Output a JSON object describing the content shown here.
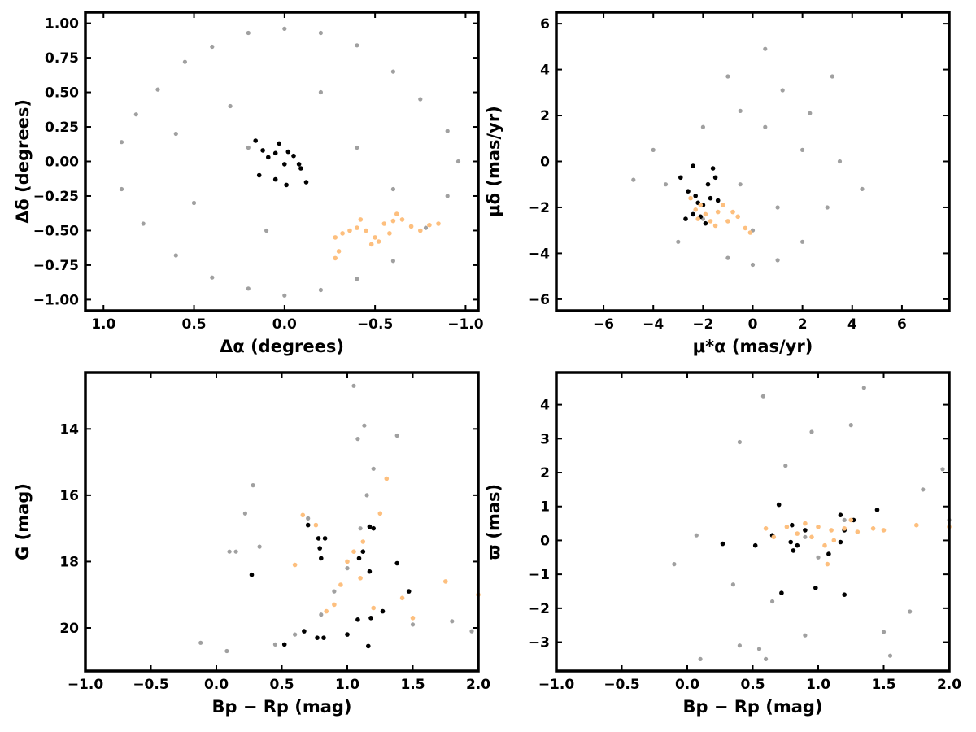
{
  "colors": {
    "field": "#a0a0a0",
    "group_black": "#000000",
    "group_orange": "#fdbf7e"
  },
  "chart_data": [
    {
      "type": "scatter",
      "panel": "top-left",
      "xlabel": "Δα (degrees)",
      "ylabel": "Δδ (degrees)",
      "xlim": [
        1.1,
        -1.07
      ],
      "ylim": [
        -1.08,
        1.08
      ],
      "x_inverted": true,
      "xticks": [
        "1.0",
        "0.5",
        "0.0",
        "−0.5",
        "−1.0"
      ],
      "yticks": [
        "−1.00",
        "−0.75",
        "−0.50",
        "−0.25",
        "0.00",
        "0.25",
        "0.50",
        "0.75",
        "1.00"
      ],
      "series": [
        {
          "role": "field",
          "color": "#a0a0a0",
          "points": [
            [
              0.9,
              0.14
            ],
            [
              0.82,
              0.34
            ],
            [
              0.7,
              0.52
            ],
            [
              0.55,
              0.72
            ],
            [
              0.4,
              0.83
            ],
            [
              0.2,
              0.93
            ],
            [
              0.0,
              0.96
            ],
            [
              -0.2,
              0.93
            ],
            [
              -0.4,
              0.84
            ],
            [
              -0.6,
              0.65
            ],
            [
              -0.75,
              0.45
            ],
            [
              -0.9,
              0.22
            ],
            [
              -0.96,
              0.0
            ],
            [
              -0.9,
              -0.25
            ],
            [
              -0.78,
              -0.48
            ],
            [
              -0.6,
              -0.72
            ],
            [
              -0.4,
              -0.85
            ],
            [
              -0.2,
              -0.93
            ],
            [
              0.0,
              -0.97
            ],
            [
              0.2,
              -0.92
            ],
            [
              0.4,
              -0.84
            ],
            [
              0.6,
              -0.68
            ],
            [
              0.78,
              -0.45
            ],
            [
              0.9,
              -0.2
            ],
            [
              0.3,
              0.4
            ],
            [
              -0.2,
              0.5
            ],
            [
              0.5,
              -0.3
            ],
            [
              -0.4,
              0.1
            ],
            [
              0.1,
              -0.5
            ],
            [
              -0.6,
              -0.2
            ],
            [
              0.6,
              0.2
            ],
            [
              0.2,
              0.1
            ]
          ]
        },
        {
          "role": "group",
          "color": "#000000",
          "points": [
            [
              0.16,
              0.15
            ],
            [
              0.12,
              0.08
            ],
            [
              0.05,
              0.06
            ],
            [
              0.03,
              0.13
            ],
            [
              -0.02,
              0.07
            ],
            [
              0.0,
              -0.02
            ],
            [
              -0.05,
              0.04
            ],
            [
              -0.09,
              -0.05
            ],
            [
              -0.12,
              -0.15
            ],
            [
              0.05,
              -0.13
            ],
            [
              0.14,
              -0.1
            ],
            [
              -0.01,
              -0.17
            ],
            [
              -0.08,
              -0.02
            ],
            [
              0.09,
              0.03
            ]
          ]
        },
        {
          "role": "group",
          "color": "#fdbf7e",
          "points": [
            [
              -0.28,
              -0.55
            ],
            [
              -0.32,
              -0.52
            ],
            [
              -0.36,
              -0.5
            ],
            [
              -0.4,
              -0.48
            ],
            [
              -0.45,
              -0.5
            ],
            [
              -0.5,
              -0.55
            ],
            [
              -0.55,
              -0.45
            ],
            [
              -0.6,
              -0.43
            ],
            [
              -0.65,
              -0.42
            ],
            [
              -0.7,
              -0.47
            ],
            [
              -0.75,
              -0.5
            ],
            [
              -0.8,
              -0.46
            ],
            [
              -0.85,
              -0.45
            ],
            [
              -0.48,
              -0.6
            ],
            [
              -0.52,
              -0.58
            ],
            [
              -0.3,
              -0.65
            ],
            [
              -0.42,
              -0.42
            ],
            [
              -0.58,
              -0.52
            ],
            [
              -0.28,
              -0.7
            ],
            [
              -0.62,
              -0.38
            ]
          ]
        }
      ]
    },
    {
      "type": "scatter",
      "panel": "top-right",
      "xlabel": "μ*α (mas/yr)",
      "ylabel": "μδ (mas/yr)",
      "xlim": [
        -7.9,
        7.9
      ],
      "ylim": [
        -6.5,
        6.5
      ],
      "xticks": [
        "−6",
        "−4",
        "−2",
        "0",
        "2",
        "4",
        "6"
      ],
      "yticks": [
        "−6",
        "−4",
        "−2",
        "0",
        "2",
        "4",
        "6"
      ],
      "series": [
        {
          "role": "field",
          "color": "#a0a0a0",
          "points": [
            [
              -4.8,
              -0.8
            ],
            [
              -4.0,
              0.5
            ],
            [
              -3.0,
              -3.5
            ],
            [
              -2.0,
              1.5
            ],
            [
              -1.0,
              -4.2
            ],
            [
              0.0,
              -4.5
            ],
            [
              1.0,
              -4.3
            ],
            [
              2.0,
              -3.5
            ],
            [
              3.0,
              -2.0
            ],
            [
              3.5,
              0.0
            ],
            [
              4.4,
              -1.2
            ],
            [
              2.0,
              0.5
            ],
            [
              0.5,
              1.5
            ],
            [
              -0.5,
              2.2
            ],
            [
              -1.0,
              3.7
            ],
            [
              0.5,
              4.9
            ],
            [
              1.2,
              3.1
            ],
            [
              3.2,
              3.7
            ],
            [
              2.3,
              2.1
            ],
            [
              -3.5,
              -1.0
            ],
            [
              -2.0,
              -2.5
            ],
            [
              -0.5,
              -1.0
            ],
            [
              1.0,
              -2.0
            ],
            [
              0.0,
              -3.0
            ]
          ]
        },
        {
          "role": "group",
          "color": "#000000",
          "points": [
            [
              -2.9,
              -0.7
            ],
            [
              -2.6,
              -1.3
            ],
            [
              -2.4,
              -0.2
            ],
            [
              -2.3,
              -1.5
            ],
            [
              -2.2,
              -1.8
            ],
            [
              -2.1,
              -2.4
            ],
            [
              -2.0,
              -1.9
            ],
            [
              -1.8,
              -1.0
            ],
            [
              -1.7,
              -1.6
            ],
            [
              -1.6,
              -0.3
            ],
            [
              -1.5,
              -0.7
            ],
            [
              -1.4,
              -1.7
            ],
            [
              -2.7,
              -2.5
            ],
            [
              -1.9,
              -2.7
            ],
            [
              -2.4,
              -2.3
            ]
          ]
        },
        {
          "role": "group",
          "color": "#fdbf7e",
          "points": [
            [
              -2.3,
              -2.1
            ],
            [
              -2.1,
              -1.9
            ],
            [
              -1.9,
              -2.3
            ],
            [
              -1.7,
              -2.6
            ],
            [
              -1.4,
              -2.2
            ],
            [
              -1.2,
              -1.9
            ],
            [
              -1.0,
              -2.6
            ],
            [
              -0.8,
              -2.2
            ],
            [
              -0.6,
              -2.4
            ],
            [
              -0.3,
              -2.9
            ],
            [
              -0.1,
              -3.1
            ],
            [
              -2.5,
              -1.6
            ],
            [
              -2.2,
              -2.5
            ],
            [
              -1.5,
              -2.8
            ]
          ]
        }
      ]
    },
    {
      "type": "scatter",
      "panel": "bottom-left",
      "xlabel": "Bp − Rp (mag)",
      "ylabel": "G (mag)",
      "xlim": [
        -1.0,
        2.0
      ],
      "ylim": [
        12.3,
        21.3
      ],
      "y_inverted": true,
      "xticks": [
        "−1.0",
        "−0.5",
        "0.0",
        "0.5",
        "1.0",
        "1.5",
        "2.0"
      ],
      "yticks": [
        "14",
        "16",
        "18",
        "20"
      ],
      "series": [
        {
          "role": "field",
          "color": "#a0a0a0",
          "points": [
            [
              -0.12,
              20.45
            ],
            [
              0.08,
              20.7
            ],
            [
              0.1,
              17.7
            ],
            [
              0.15,
              17.7
            ],
            [
              0.22,
              16.55
            ],
            [
              0.28,
              15.7
            ],
            [
              0.33,
              17.55
            ],
            [
              0.45,
              20.5
            ],
            [
              0.6,
              20.2
            ],
            [
              0.8,
              19.6
            ],
            [
              1.0,
              18.2
            ],
            [
              1.1,
              17.0
            ],
            [
              1.15,
              16.0
            ],
            [
              1.2,
              15.2
            ],
            [
              1.08,
              14.3
            ],
            [
              1.13,
              13.9
            ],
            [
              1.05,
              12.7
            ],
            [
              1.38,
              14.2
            ],
            [
              1.5,
              19.9
            ],
            [
              1.8,
              19.8
            ],
            [
              1.95,
              20.1
            ],
            [
              0.7,
              16.7
            ],
            [
              0.9,
              18.9
            ]
          ]
        },
        {
          "role": "group",
          "color": "#000000",
          "points": [
            [
              0.27,
              18.4
            ],
            [
              0.52,
              20.5
            ],
            [
              0.67,
              20.1
            ],
            [
              0.7,
              16.9
            ],
            [
              0.77,
              20.3
            ],
            [
              0.78,
              17.3
            ],
            [
              0.79,
              17.6
            ],
            [
              0.8,
              17.9
            ],
            [
              0.82,
              20.3
            ],
            [
              0.83,
              17.3
            ],
            [
              1.0,
              20.2
            ],
            [
              1.08,
              19.75
            ],
            [
              1.09,
              17.9
            ],
            [
              1.12,
              17.7
            ],
            [
              1.16,
              20.55
            ],
            [
              1.17,
              18.3
            ],
            [
              1.18,
              19.7
            ],
            [
              1.2,
              17.0
            ],
            [
              1.27,
              19.5
            ],
            [
              1.38,
              18.05
            ],
            [
              1.47,
              18.9
            ],
            [
              1.17,
              16.95
            ]
          ]
        },
        {
          "role": "group",
          "color": "#fdbf7e",
          "points": [
            [
              0.6,
              18.1
            ],
            [
              0.66,
              16.6
            ],
            [
              0.76,
              16.9
            ],
            [
              0.84,
              19.5
            ],
            [
              0.9,
              19.3
            ],
            [
              0.95,
              18.7
            ],
            [
              1.0,
              18.0
            ],
            [
              1.05,
              17.7
            ],
            [
              1.1,
              18.5
            ],
            [
              1.12,
              17.4
            ],
            [
              1.2,
              19.4
            ],
            [
              1.25,
              16.55
            ],
            [
              1.3,
              15.5
            ],
            [
              1.42,
              19.1
            ],
            [
              1.5,
              19.7
            ],
            [
              1.75,
              18.6
            ],
            [
              2.0,
              19.0
            ]
          ]
        }
      ]
    },
    {
      "type": "scatter",
      "panel": "bottom-right",
      "xlabel": "Bp − Rp (mag)",
      "ylabel": "ϖ (mas)",
      "xlim": [
        -1.0,
        2.0
      ],
      "ylim": [
        -3.85,
        4.95
      ],
      "xticks": [
        "−1.0",
        "−0.5",
        "0.0",
        "0.5",
        "1.0",
        "1.5",
        "2.0"
      ],
      "yticks": [
        "−3",
        "−2",
        "−1",
        "0",
        "1",
        "2",
        "3",
        "4"
      ],
      "series": [
        {
          "role": "field",
          "color": "#a0a0a0",
          "points": [
            [
              -0.1,
              -0.7
            ],
            [
              0.07,
              0.15
            ],
            [
              0.1,
              -3.5
            ],
            [
              0.35,
              -1.3
            ],
            [
              0.4,
              -3.1
            ],
            [
              0.4,
              2.9
            ],
            [
              0.55,
              -3.2
            ],
            [
              0.58,
              4.25
            ],
            [
              0.6,
              -3.5
            ],
            [
              0.65,
              -1.8
            ],
            [
              0.75,
              2.2
            ],
            [
              0.9,
              -2.8
            ],
            [
              0.95,
              3.2
            ],
            [
              1.0,
              -0.5
            ],
            [
              1.25,
              3.4
            ],
            [
              1.35,
              4.5
            ],
            [
              1.5,
              -2.7
            ],
            [
              1.55,
              -3.4
            ],
            [
              1.7,
              -2.1
            ],
            [
              1.8,
              1.5
            ],
            [
              1.95,
              2.1
            ],
            [
              2.0,
              0.6
            ],
            [
              1.2,
              0.6
            ],
            [
              0.9,
              0.1
            ]
          ]
        },
        {
          "role": "group",
          "color": "#000000",
          "points": [
            [
              0.27,
              -0.1
            ],
            [
              0.52,
              -0.15
            ],
            [
              0.65,
              0.15
            ],
            [
              0.7,
              1.05
            ],
            [
              0.72,
              -1.55
            ],
            [
              0.79,
              -0.05
            ],
            [
              0.8,
              0.45
            ],
            [
              0.81,
              -0.3
            ],
            [
              0.84,
              -0.15
            ],
            [
              0.98,
              -1.4
            ],
            [
              1.08,
              -0.4
            ],
            [
              1.17,
              0.75
            ],
            [
              1.17,
              -0.05
            ],
            [
              1.2,
              -1.6
            ],
            [
              1.27,
              0.6
            ],
            [
              1.45,
              0.9
            ],
            [
              1.2,
              0.3
            ],
            [
              0.9,
              0.3
            ]
          ]
        },
        {
          "role": "group",
          "color": "#fdbf7e",
          "points": [
            [
              0.6,
              0.35
            ],
            [
              0.66,
              0.1
            ],
            [
              0.76,
              0.4
            ],
            [
              0.84,
              0.2
            ],
            [
              0.9,
              0.5
            ],
            [
              0.95,
              0.1
            ],
            [
              1.0,
              0.4
            ],
            [
              1.05,
              -0.15
            ],
            [
              1.1,
              0.3
            ],
            [
              1.12,
              0.0
            ],
            [
              1.2,
              0.35
            ],
            [
              1.25,
              0.6
            ],
            [
              1.3,
              0.25
            ],
            [
              1.42,
              0.35
            ],
            [
              1.5,
              0.3
            ],
            [
              1.75,
              0.45
            ],
            [
              2.0,
              0.4
            ],
            [
              1.07,
              -0.7
            ]
          ]
        }
      ]
    }
  ]
}
